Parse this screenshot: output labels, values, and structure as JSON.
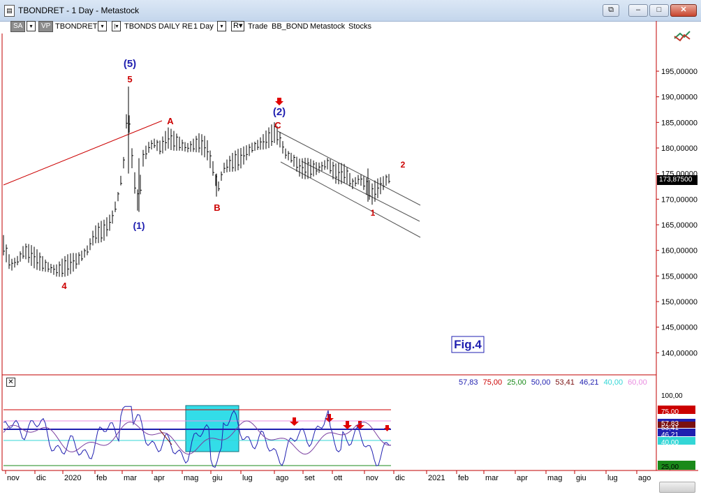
{
  "window": {
    "title": "TBONDRET - 1 Day - Metastock",
    "app_icon": "document-icon",
    "buttons": {
      "restore_label": "⧉",
      "minimize_label": "–",
      "maximize_label": "□",
      "close_label": "✕"
    }
  },
  "toolbar": {
    "sa_label": "SA",
    "vp_label": "VP",
    "symbol": "TBONDRET",
    "security_label": "TBONDS DAILY RE",
    "period": "1 Day",
    "r_label": "R",
    "trade_label": "Trade",
    "expert": "BB_BOND",
    "source": "Metastock",
    "type": "Stocks"
  },
  "price_axis": {
    "ticks": [
      "195,00000",
      "190,00000",
      "185,00000",
      "180,00000",
      "175,00000",
      "170,00000",
      "165,00000",
      "160,00000",
      "155,00000",
      "150,00000",
      "145,00000",
      "140,00000"
    ],
    "current_price": "173,87500"
  },
  "annotations": {
    "wave5_blue": "(5)",
    "wave5_red": "5",
    "wave1_blue": "(1)",
    "wave4_red": "4",
    "waveA": "A",
    "waveB": "B",
    "waveC": "C",
    "wave2_blue": "(2)",
    "wave1_red": "1",
    "wave2_red": "2",
    "fig": "Fig.4"
  },
  "indicator": {
    "values": [
      {
        "text": "57,83",
        "color": "#1f1fb0"
      },
      {
        "text": "75,00",
        "color": "#cc0000"
      },
      {
        "text": "25,00",
        "color": "#1a8a1a"
      },
      {
        "text": "50,00",
        "color": "#1f1fb0"
      },
      {
        "text": "53,41",
        "color": "#7a1010"
      },
      {
        "text": "46,21",
        "color": "#1f1fb0"
      },
      {
        "text": "40,00",
        "color": "#33d6d6"
      },
      {
        "text": "60,00",
        "color": "#e98de0"
      }
    ],
    "axis_ticks": [
      "100,00",
      "75,00",
      "57,83",
      "53,41",
      "46,21",
      "40,00",
      "25,00"
    ]
  },
  "time_axis": [
    "nov",
    "dic",
    "2020",
    "feb",
    "mar",
    "apr",
    "mag",
    "giu",
    "lug",
    "ago",
    "set",
    "ott",
    "nov",
    "dic",
    "2021",
    "feb",
    "mar",
    "apr",
    "mag",
    "giu",
    "lug",
    "ago"
  ],
  "chart_data": {
    "type": "bar",
    "title": "TBONDRET - 1 Day",
    "ylim": [
      135,
      200
    ],
    "x": [
      "2019-11",
      "2019-12",
      "2020-01",
      "2020-02",
      "2020-03",
      "2020-04",
      "2020-05",
      "2020-06",
      "2020-07",
      "2020-08",
      "2020-09",
      "2020-10",
      "2020-11",
      "2020-11-20"
    ],
    "close": [
      160,
      157,
      159,
      163,
      172,
      181,
      181,
      173,
      179,
      182,
      177,
      176,
      172,
      173.875
    ],
    "key_points": [
      {
        "label": "4",
        "date": "2019-12-24",
        "price": 155.5
      },
      {
        "label": "5",
        "date": "2020-03-09",
        "price": 191.5
      },
      {
        "label": "(1)",
        "date": "2020-03-18",
        "price": 168
      },
      {
        "label": "B",
        "date": "2020-06-08",
        "price": 171
      },
      {
        "label": "C",
        "date": "2020-08-04",
        "price": 183.5
      },
      {
        "label": "1",
        "date": "2020-11-04",
        "price": 170
      }
    ],
    "indicator": {
      "name": "Oscillator",
      "levels": [
        75,
        60,
        50,
        40,
        25
      ],
      "last_values": [
        57.83,
        53.41,
        46.21
      ],
      "ylim": [
        10,
        110
      ]
    }
  }
}
